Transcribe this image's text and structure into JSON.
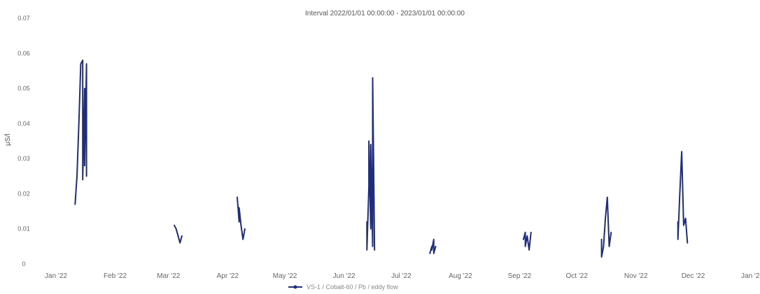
{
  "chart_data": {
    "type": "line",
    "title": "Interval 2022/01/01 00:00:00 - 2023/01/01 00:00:00",
    "ylabel": "μS/l",
    "xlabel": "",
    "ylim": [
      0,
      0.07
    ],
    "y_ticks": [
      {
        "value": 0,
        "label": "0"
      },
      {
        "value": 0.01,
        "label": "0.01"
      },
      {
        "value": 0.02,
        "label": "0.02"
      },
      {
        "value": 0.03,
        "label": "0.03"
      },
      {
        "value": 0.04,
        "label": "0.04"
      },
      {
        "value": 0.05,
        "label": "0.05"
      },
      {
        "value": 0.06,
        "label": "0.06"
      },
      {
        "value": 0.07,
        "label": "0.07"
      }
    ],
    "x_ticks": [
      {
        "value": "2022-01-01",
        "label": "Jan '22"
      },
      {
        "value": "2022-02-01",
        "label": "Feb '22"
      },
      {
        "value": "2022-03-01",
        "label": "Mar '22"
      },
      {
        "value": "2022-04-01",
        "label": "Apr '22"
      },
      {
        "value": "2022-05-01",
        "label": "May '22"
      },
      {
        "value": "2022-06-01",
        "label": "Jun '22"
      },
      {
        "value": "2022-07-01",
        "label": "Jul '22"
      },
      {
        "value": "2022-08-01",
        "label": "Aug '22"
      },
      {
        "value": "2022-09-01",
        "label": "Sep '22"
      },
      {
        "value": "2022-10-01",
        "label": "Oct '22"
      },
      {
        "value": "2022-11-01",
        "label": "Nov '22"
      },
      {
        "value": "2022-12-01",
        "label": "Dec '22"
      },
      {
        "value": "2023-01-01",
        "label": "Jan '23"
      }
    ],
    "xlim": [
      "2022-01-01",
      "2023-01-01"
    ],
    "grid": false,
    "legend_position": "bottom",
    "series": [
      {
        "name": "VS-1 / Cobalt-60 / Pb / eddy flow",
        "color": "#1f2d7a",
        "segments": [
          [
            [
              "2022-01-11",
              0.017
            ],
            [
              "2022-01-12",
              0.025
            ],
            [
              "2022-01-13",
              0.04
            ],
            [
              "2022-01-14",
              0.057
            ],
            [
              "2022-01-15",
              0.058
            ],
            [
              "2022-01-15",
              0.024
            ],
            [
              "2022-01-16",
              0.05
            ],
            [
              "2022-01-16",
              0.028
            ],
            [
              "2022-01-17",
              0.057
            ],
            [
              "2022-01-17",
              0.025
            ]
          ],
          [
            [
              "2022-03-04",
              0.011
            ],
            [
              "2022-03-05",
              0.01
            ],
            [
              "2022-03-06",
              0.008
            ],
            [
              "2022-03-07",
              0.006
            ],
            [
              "2022-03-08",
              0.008
            ]
          ],
          [
            [
              "2022-04-06",
              0.019
            ],
            [
              "2022-04-07",
              0.012
            ],
            [
              "2022-04-07",
              0.016
            ],
            [
              "2022-04-08",
              0.011
            ],
            [
              "2022-04-09",
              0.007
            ],
            [
              "2022-04-10",
              0.01
            ]
          ],
          [
            [
              "2022-06-13",
              0.012
            ],
            [
              "2022-06-13",
              0.004
            ],
            [
              "2022-06-14",
              0.022
            ],
            [
              "2022-06-14",
              0.035
            ],
            [
              "2022-06-15",
              0.01
            ],
            [
              "2022-06-15",
              0.034
            ],
            [
              "2022-06-16",
              0.005
            ],
            [
              "2022-06-16",
              0.053
            ],
            [
              "2022-06-17",
              0.004
            ]
          ],
          [
            [
              "2022-07-16",
              0.003
            ],
            [
              "2022-07-17",
              0.005
            ],
            [
              "2022-07-17",
              0.004
            ],
            [
              "2022-07-18",
              0.007
            ],
            [
              "2022-07-18",
              0.003
            ],
            [
              "2022-07-19",
              0.005
            ]
          ],
          [
            [
              "2022-09-03",
              0.007
            ],
            [
              "2022-09-04",
              0.009
            ],
            [
              "2022-09-04",
              0.005
            ],
            [
              "2022-09-05",
              0.008
            ],
            [
              "2022-09-06",
              0.004
            ],
            [
              "2022-09-07",
              0.009
            ]
          ],
          [
            [
              "2022-10-14",
              0.007
            ],
            [
              "2022-10-14",
              0.002
            ],
            [
              "2022-10-15",
              0.005
            ],
            [
              "2022-10-16",
              0.013
            ],
            [
              "2022-10-17",
              0.019
            ],
            [
              "2022-10-18",
              0.005
            ],
            [
              "2022-10-19",
              0.009
            ]
          ],
          [
            [
              "2022-11-23",
              0.012
            ],
            [
              "2022-11-23",
              0.007
            ],
            [
              "2022-11-24",
              0.02
            ],
            [
              "2022-11-25",
              0.032
            ],
            [
              "2022-11-26",
              0.011
            ],
            [
              "2022-11-27",
              0.013
            ],
            [
              "2022-11-28",
              0.006
            ]
          ]
        ]
      }
    ]
  }
}
